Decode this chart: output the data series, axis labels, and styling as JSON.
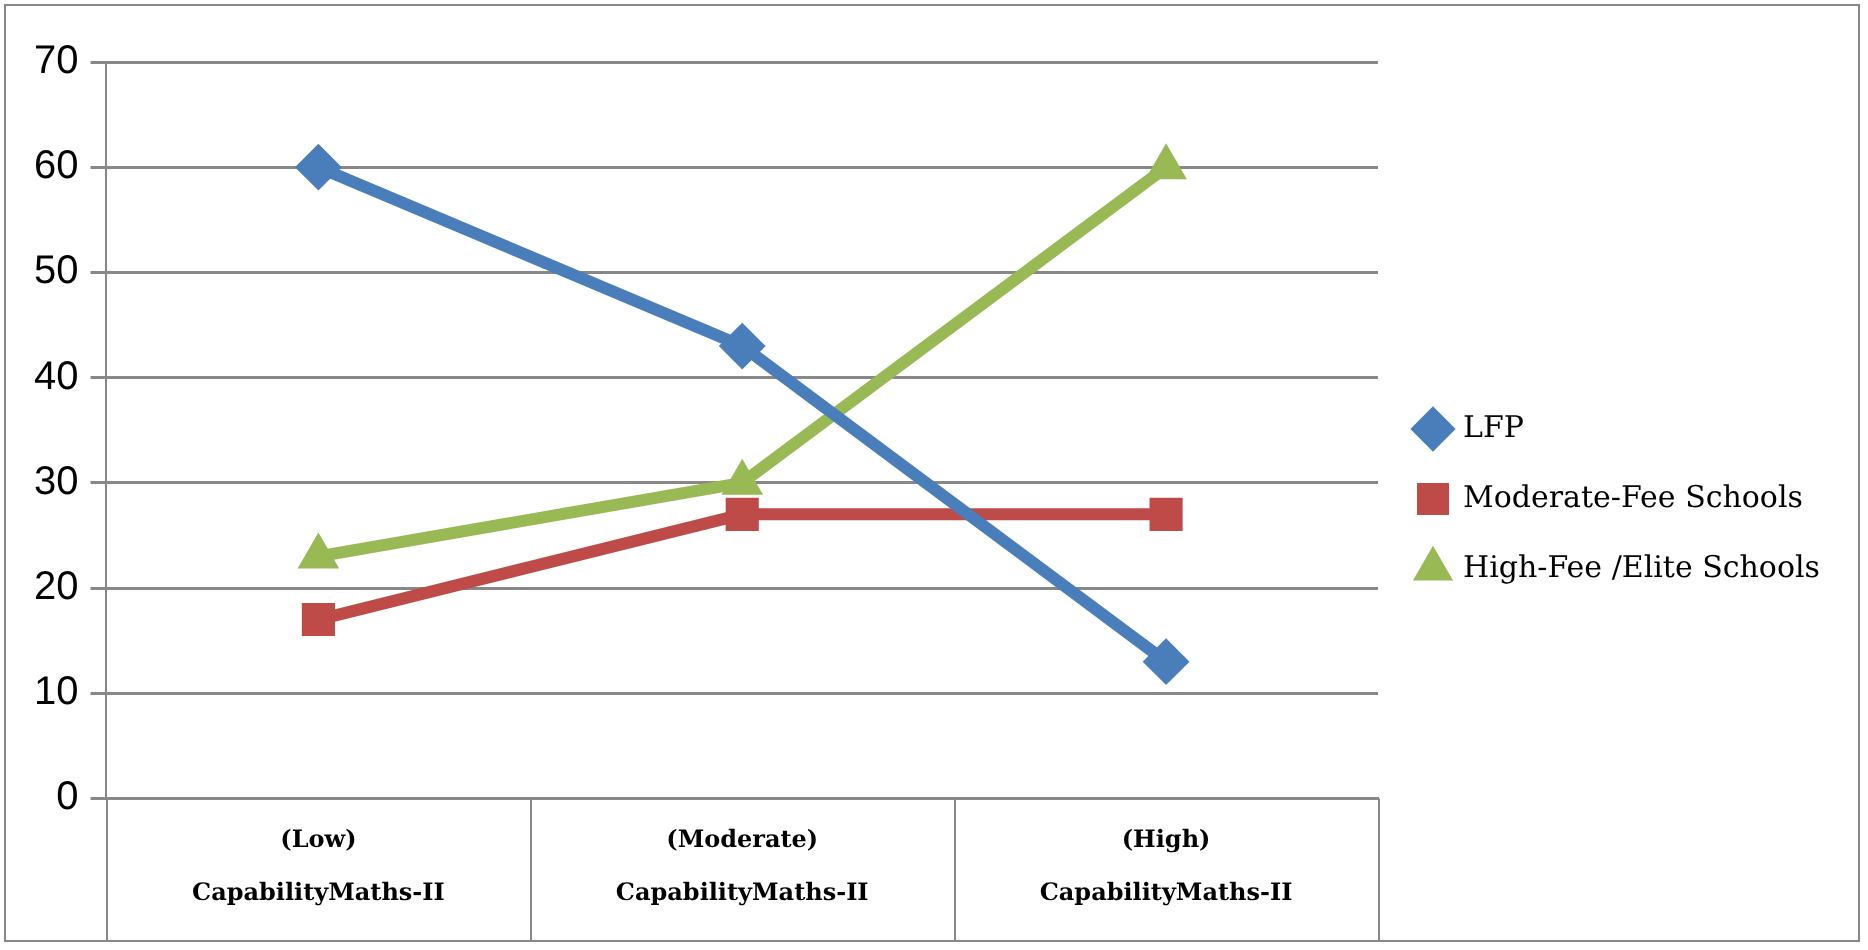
{
  "chart_data": {
    "type": "line",
    "categories": [
      "(Low)\nCapabilityMaths-II",
      "(Moderate)\nCapabilityMaths-II",
      "(High)\nCapabilityMaths-II"
    ],
    "series": [
      {
        "name": "LFP",
        "color": "#4a7ebb",
        "marker": "diamond",
        "values": [
          60,
          43,
          13
        ]
      },
      {
        "name": "Moderate-Fee Schools",
        "color": "#be4b48",
        "marker": "square",
        "values": [
          17,
          27,
          27
        ]
      },
      {
        "name": "High-Fee /Elite Schools",
        "color": "#98b954",
        "marker": "triangle",
        "values": [
          23,
          30,
          60
        ]
      }
    ],
    "ylim": [
      0,
      70
    ],
    "yticks": [
      0,
      10,
      20,
      30,
      40,
      50,
      60,
      70
    ],
    "grid": "y",
    "legend": "right",
    "line_style": "solid"
  }
}
